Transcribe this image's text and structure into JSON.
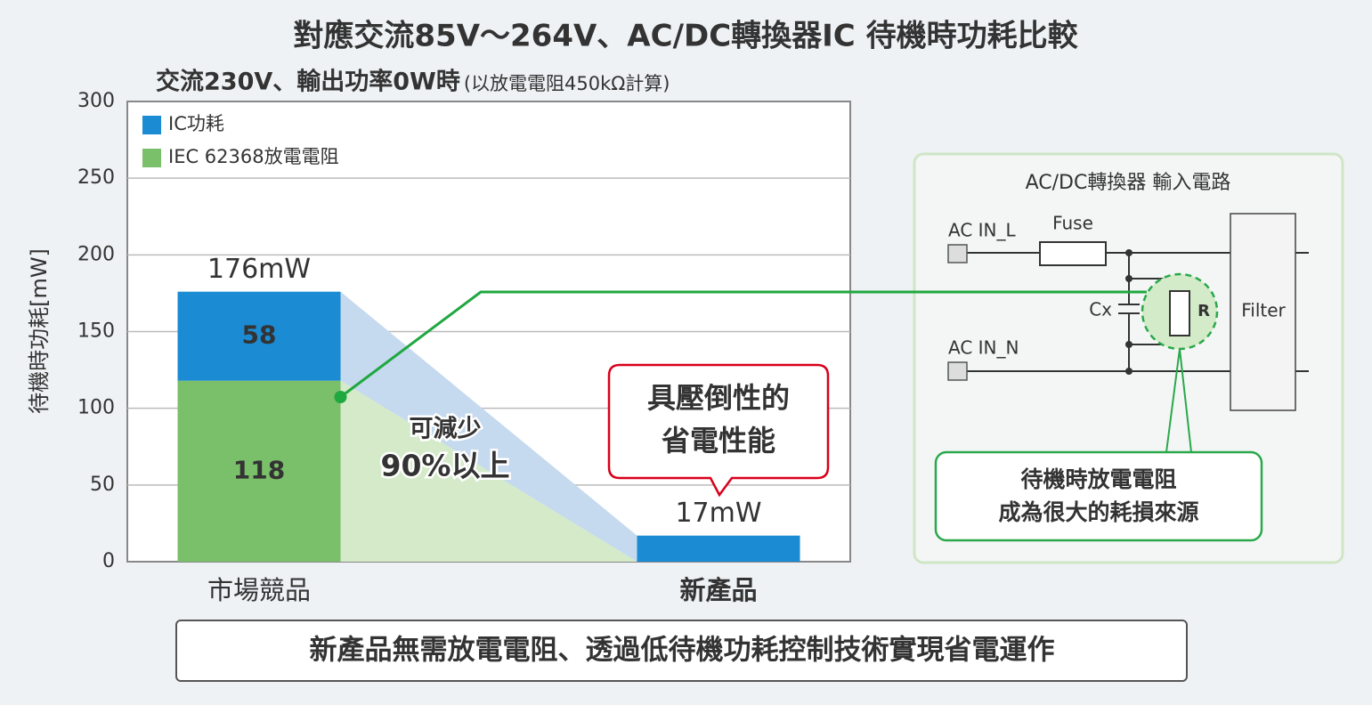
{
  "chart_data": {
    "type": "bar",
    "stacked": true,
    "title": "對應交流85V〜264V、AC/DC轉換器IC 待機時功耗比較",
    "subtitle": "交流230V、輸出功率0W時",
    "subtitle_note": "(以放電電阻450kΩ計算)",
    "y_label": "待機時功耗[mW]",
    "categories": [
      "市場競品",
      "新產品"
    ],
    "category_colors": [
      "#333333",
      "#d9001b"
    ],
    "series": [
      {
        "name": "IC功耗",
        "color": "#1b8bd3",
        "values": [
          58,
          17
        ]
      },
      {
        "name": "IEC 62368放電電阻",
        "color": "#7abf6a",
        "values": [
          118,
          0
        ]
      }
    ],
    "totals": [
      176,
      17
    ],
    "total_labels": [
      "176mW",
      "17mW"
    ],
    "ylim": [
      0,
      300
    ],
    "yticks": [
      0,
      50,
      100,
      150,
      200,
      250,
      300
    ],
    "grid": true,
    "legend": "upper left",
    "reduction_annotation": [
      "可減少",
      "90%以上"
    ],
    "callout": [
      "具壓倒性的",
      "省電性能"
    ]
  },
  "circuit": {
    "title": "AC/DC轉換器 輸入電路",
    "ac_in_l": "AC IN_L",
    "fuse": "Fuse",
    "ac_in_n": "AC IN_N",
    "cx": "Cx",
    "r": "R",
    "filter": "Filter",
    "callout": [
      "待機時放電電阻",
      "成為很大的耗損來源"
    ]
  },
  "footer": "新產品無需放電電阻、透過低待機功耗控制技術實現省電運作"
}
